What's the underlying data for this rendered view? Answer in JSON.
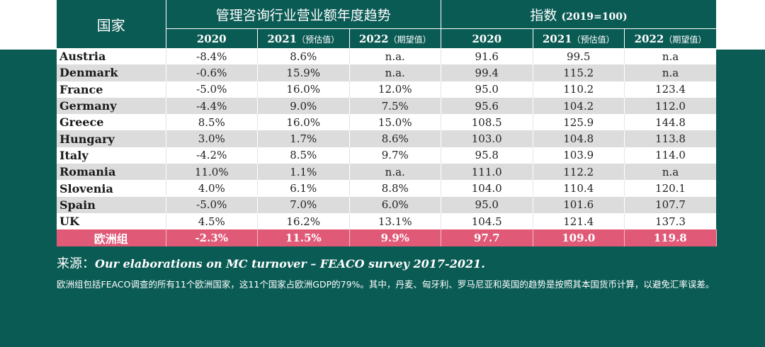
{
  "table": {
    "country_header": "国家",
    "group1_title": "管理咨询行业营业额年度趋势",
    "group2_title": "指数",
    "group2_subtitle": "(2019=100)",
    "subheaders": [
      {
        "year": "2020",
        "note": ""
      },
      {
        "year": "2021",
        "note": "（预估值）"
      },
      {
        "year": "2022",
        "note": "（期望值）"
      },
      {
        "year": "2020",
        "note": ""
      },
      {
        "year": "2021",
        "note": "（预估值）"
      },
      {
        "year": "2022",
        "note": "（期望值）"
      }
    ],
    "rows": [
      {
        "country": "Austria",
        "v": [
          "-8.4%",
          "8.6%",
          "n.a.",
          "91.6",
          "99.5",
          "n.a"
        ]
      },
      {
        "country": "Denmark",
        "v": [
          "-0.6%",
          "15.9%",
          "n.a.",
          "99.4",
          "115.2",
          "n.a"
        ]
      },
      {
        "country": "France",
        "v": [
          "-5.0%",
          "16.0%",
          "12.0%",
          "95.0",
          "110.2",
          "123.4"
        ]
      },
      {
        "country": "Germany",
        "v": [
          "-4.4%",
          "9.0%",
          "7.5%",
          "95.6",
          "104.2",
          "112.0"
        ]
      },
      {
        "country": "Greece",
        "v": [
          "8.5%",
          "16.0%",
          "15.0%",
          "108.5",
          "125.9",
          "144.8"
        ]
      },
      {
        "country": "Hungary",
        "v": [
          "3.0%",
          "1.7%",
          "8.6%",
          "103.0",
          "104.8",
          "113.8"
        ]
      },
      {
        "country": "Italy",
        "v": [
          "-4.2%",
          "8.5%",
          "9.7%",
          "95.8",
          "103.9",
          "114.0"
        ]
      },
      {
        "country": "Romania",
        "v": [
          "11.0%",
          "1.1%",
          "n.a.",
          "111.0",
          "112.2",
          "n.a"
        ]
      },
      {
        "country": "Slovenia",
        "v": [
          "4.0%",
          "6.1%",
          "8.8%",
          "104.0",
          "110.4",
          "120.1"
        ]
      },
      {
        "country": "Spain",
        "v": [
          "-5.0%",
          "7.0%",
          "6.0%",
          "95.0",
          "101.6",
          "107.7"
        ]
      },
      {
        "country": "UK",
        "v": [
          "4.5%",
          "16.2%",
          "13.1%",
          "104.5",
          "121.4",
          "137.3"
        ]
      }
    ],
    "total": {
      "country": "欧洲组",
      "v": [
        "-2.3%",
        "11.5%",
        "9.9%",
        "97.7",
        "109.0",
        "119.8"
      ]
    }
  },
  "source": {
    "label": "来源：",
    "text": "Our elaborations on MC turnover – FEACO survey 2017-2021."
  },
  "note": "欧洲组包括FEACO调查的所有11个欧洲国家，这11个国家占欧洲GDP的79%。其中，丹麦、匈牙利、罗马尼亚和英国的趋势是按照其本国货币计算，以避免汇率误差。",
  "colors": {
    "teal": "#0b5b55",
    "total_row": "#e05a78",
    "stripe": "#dcdcdc"
  }
}
